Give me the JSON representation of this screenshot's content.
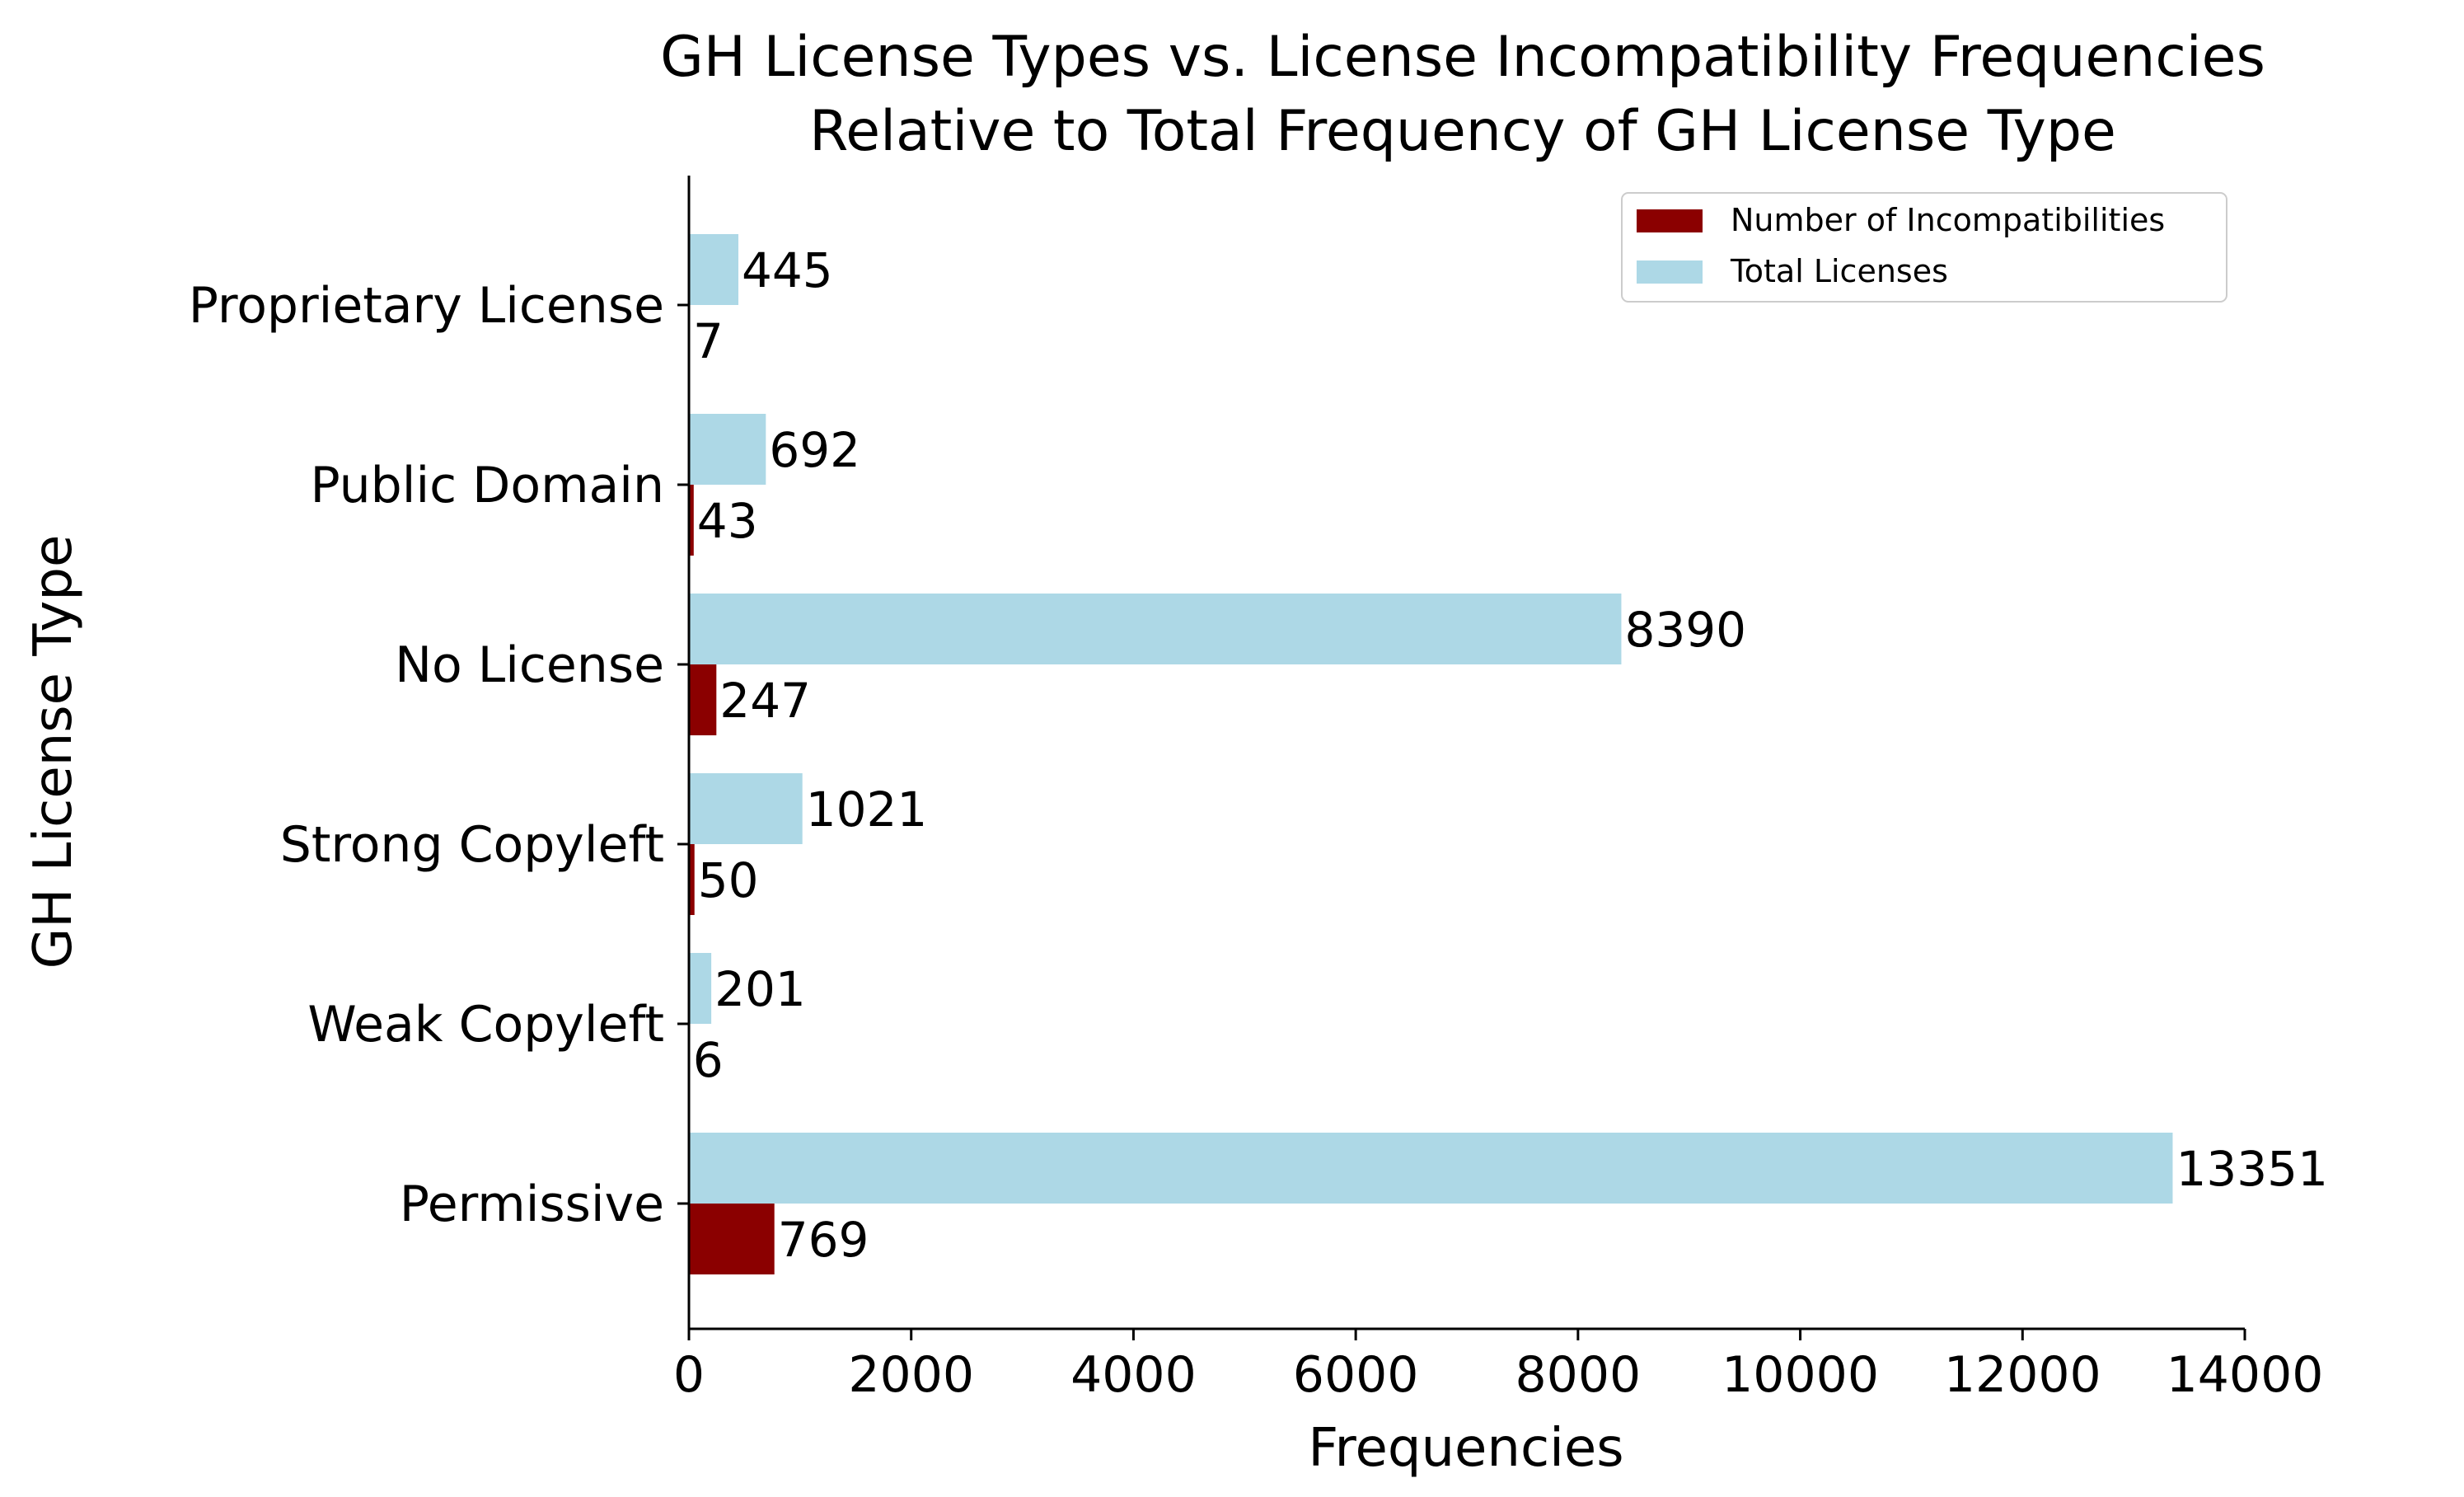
{
  "chart_data": {
    "type": "bar",
    "orientation": "horizontal",
    "title": "GH License Types vs. License Incompatibility Frequencies\nRelative to Total Frequency of GH License Type",
    "title_lines": [
      "GH License Types vs. License Incompatibility Frequencies",
      "Relative to Total Frequency of GH License Type"
    ],
    "xlabel": "Frequencies",
    "ylabel": "GH License Type",
    "xlim": [
      0,
      14000
    ],
    "xticks": [
      0,
      2000,
      4000,
      6000,
      8000,
      10000,
      12000,
      14000
    ],
    "categories": [
      "Permissive",
      "Weak Copyleft",
      "Strong Copyleft",
      "No License",
      "Public Domain",
      "Proprietary License"
    ],
    "series": [
      {
        "name": "Number of Incompatibilities",
        "color": "#8b0000",
        "values": [
          769,
          6,
          50,
          247,
          43,
          7
        ]
      },
      {
        "name": "Total Licenses",
        "color": "#add8e6",
        "values": [
          13351,
          201,
          1021,
          8390,
          692,
          445
        ]
      }
    ],
    "legend_position": "top-right",
    "grid": false
  }
}
